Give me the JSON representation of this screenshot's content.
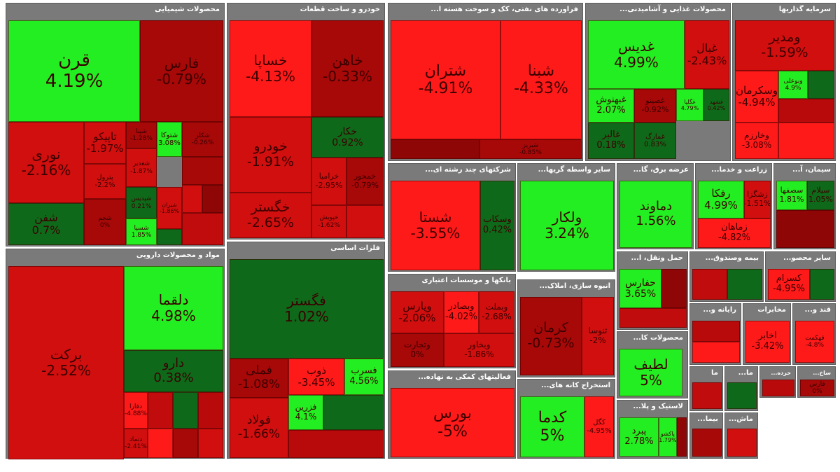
{
  "chart_data": {
    "type": "treemap",
    "title": "",
    "colors": {
      "strong_pos": "#22ee22",
      "mild_pos": "#0e6a1a",
      "strong_neg": "#ff1a1a",
      "mid_neg": "#d10f0f",
      "mild_neg": "#a70808",
      "header": "#7a7a7a"
    },
    "sectors": [
      {
        "id": "chem",
        "name": "محصولات شیمیایی",
        "tiles": [
          {
            "symbol": "قرن",
            "change": 4.19
          },
          {
            "symbol": "فارس",
            "change": -0.79
          },
          {
            "symbol": "نوری",
            "change": -2.16
          },
          {
            "symbol": "تاپیکو",
            "change": -1.97
          },
          {
            "symbol": "شپنا",
            "change": -1.28
          },
          {
            "symbol": "شتوکا",
            "change": 3.08
          },
          {
            "symbol": "شکلر",
            "change": -0.26
          },
          {
            "symbol": "شغدیر",
            "change": -1.87
          },
          {
            "symbol": "پترول",
            "change": -2.2
          },
          {
            "symbol": "شپدیس",
            "change": 0.21
          },
          {
            "symbol": "شیران",
            "change": -1.86
          },
          {
            "symbol": "شفن",
            "change": 0.7
          },
          {
            "symbol": "شجم",
            "change": 0
          },
          {
            "symbol": "شسپا",
            "change": 1.85
          }
        ]
      },
      {
        "id": "auto",
        "name": "خودرو و ساخت قطعات",
        "tiles": [
          {
            "symbol": "خساپا",
            "change": -4.13
          },
          {
            "symbol": "خاهن",
            "change": -0.33
          },
          {
            "symbol": "خکار",
            "change": 0.92
          },
          {
            "symbol": "خودرو",
            "change": -1.91
          },
          {
            "symbol": "خرامیا",
            "change": -2.95
          },
          {
            "symbol": "خمحور",
            "change": -0.79
          },
          {
            "symbol": "خگستر",
            "change": -2.65
          },
          {
            "symbol": "خپویش",
            "change": -1.62
          }
        ]
      },
      {
        "id": "oil",
        "name": "فراورده های نفتی، کک و سوخت هسته ا...",
        "tiles": [
          {
            "symbol": "شتران",
            "change": -4.91
          },
          {
            "symbol": "شبنا",
            "change": -4.33
          },
          {
            "symbol": "شبریز",
            "change": -0.85
          }
        ]
      },
      {
        "id": "food",
        "name": "محصولات غذایی و آشامیدنی...",
        "tiles": [
          {
            "symbol": "غدیس",
            "change": 4.99
          },
          {
            "symbol": "غبال",
            "change": -2.43
          },
          {
            "symbol": "غبهنوش",
            "change": 2.07
          },
          {
            "symbol": "غصینو",
            "change": -0.92
          },
          {
            "symbol": "غالبر",
            "change": 0.18
          },
          {
            "symbol": "غمارگ",
            "change": 0.83
          },
          {
            "symbol": "غگلپا",
            "change": 4.79
          },
          {
            "symbol": "غشهد",
            "change": 0.42
          }
        ]
      },
      {
        "id": "invest",
        "name": "سرمایه گذاریها",
        "tiles": [
          {
            "symbol": "ومدیر",
            "change": -1.59
          },
          {
            "symbol": "وسکرمان",
            "change": -4.94
          },
          {
            "symbol": "وخارزم",
            "change": -3.08
          },
          {
            "symbol": "وبوعلی",
            "change": 4.9
          }
        ]
      },
      {
        "id": "multi",
        "name": "شرکتهای چند رشته ای...",
        "tiles": [
          {
            "symbol": "شستا",
            "change": -3.55
          },
          {
            "symbol": "وسکاب",
            "change": 0.42
          }
        ]
      },
      {
        "id": "broker",
        "name": "سایر واسطه گریها...",
        "tiles": [
          {
            "symbol": "ولکار",
            "change": 3.24
          }
        ]
      },
      {
        "id": "power",
        "name": "عرضه برق، گا...",
        "tiles": [
          {
            "symbol": "دماوند",
            "change": 1.56
          }
        ]
      },
      {
        "id": "agri",
        "name": "زراعت و خدما...",
        "tiles": [
          {
            "symbol": "رفکا",
            "change": 4.99
          },
          {
            "symbol": "زشگزا",
            "change": -1.51
          },
          {
            "symbol": "زماهان",
            "change": -4.82
          }
        ]
      },
      {
        "id": "cement",
        "name": "سیمان، آ...",
        "tiles": [
          {
            "symbol": "سصفها",
            "change": 1.81
          },
          {
            "symbol": "سیلام",
            "change": 1.05
          }
        ]
      },
      {
        "id": "pharma",
        "name": "مواد و محصولات دارویی",
        "tiles": [
          {
            "symbol": "برکت",
            "change": -2.52
          },
          {
            "symbol": "دلقما",
            "change": 4.98
          },
          {
            "symbol": "دارو",
            "change": 0.38
          },
          {
            "symbol": "دفارا",
            "change": -4.88
          },
          {
            "symbol": "دتماد",
            "change": -2.41
          }
        ]
      },
      {
        "id": "metals",
        "name": "فلزات اساسی",
        "tiles": [
          {
            "symbol": "فگستر",
            "change": 1.02
          },
          {
            "symbol": "فملی",
            "change": -1.08
          },
          {
            "symbol": "فولاد",
            "change": -1.66
          },
          {
            "symbol": "ذوب",
            "change": -3.45
          },
          {
            "symbol": "فسرب",
            "change": 4.56
          },
          {
            "symbol": "فزرین",
            "change": 4.1
          }
        ]
      },
      {
        "id": "banks",
        "name": "بانکها و موسسات اعتباری",
        "tiles": [
          {
            "symbol": "وپارس",
            "change": -2.06
          },
          {
            "symbol": "وبصادر",
            "change": -4.02
          },
          {
            "symbol": "وبملت",
            "change": -2.68
          },
          {
            "symbol": "وتجارت",
            "change": 0
          },
          {
            "symbol": "وبخاور",
            "change": -1.86
          }
        ]
      },
      {
        "id": "build",
        "name": "انبوه سازی، املاک...",
        "tiles": [
          {
            "symbol": "کرمان",
            "change": -0.73
          },
          {
            "symbol": "ثنوسا",
            "change": -2
          }
        ]
      },
      {
        "id": "aux",
        "name": "فعالیتهای کمکی به نهاده...",
        "tiles": [
          {
            "symbol": "بورس",
            "change": -5
          }
        ]
      },
      {
        "id": "mining",
        "name": "استخراج کانه های...",
        "tiles": [
          {
            "symbol": "کدما",
            "change": 5
          },
          {
            "symbol": "کگل",
            "change": -4.95
          }
        ]
      },
      {
        "id": "transport",
        "name": "حمل ونقل، ا...",
        "tiles": [
          {
            "symbol": "حفارس",
            "change": 3.65
          }
        ]
      },
      {
        "id": "insurance",
        "name": "بیمه وصندوق...",
        "tiles": []
      },
      {
        "id": "othermine",
        "name": "سایر محصو...",
        "tiles": [
          {
            "symbol": "کسرام",
            "change": -4.95
          }
        ]
      },
      {
        "id": "it",
        "name": "رایانه و...",
        "tiles": []
      },
      {
        "id": "telecom",
        "name": "مخابرات",
        "tiles": [
          {
            "symbol": "اخابر",
            "change": -3.42
          }
        ]
      },
      {
        "id": "sugar",
        "name": "قند و...",
        "tiles": [
          {
            "symbol": "قهکمت",
            "change": -4.8
          }
        ]
      },
      {
        "id": "tile",
        "name": "محصولات کا...",
        "tiles": [
          {
            "symbol": "لطیف",
            "change": 5
          }
        ]
      },
      {
        "id": "rubber",
        "name": "لاستیک و پلا...",
        "tiles": [
          {
            "symbol": "پبرد",
            "change": 2.78
          },
          {
            "symbol": "پاکشو",
            "change": 1.79
          }
        ]
      },
      {
        "id": "s_ma",
        "name": "ما",
        "tiles": []
      },
      {
        "id": "s_ma2",
        "name": "ما...",
        "tiles": []
      },
      {
        "id": "s_kharde",
        "name": "خرده...",
        "tiles": []
      },
      {
        "id": "s_sakht",
        "name": "ساخ...",
        "tiles": [
          {
            "symbol": "فارس",
            "change": 0
          }
        ]
      },
      {
        "id": "s_bima",
        "name": "بیما...",
        "tiles": []
      },
      {
        "id": "s_mach",
        "name": "ماش...",
        "tiles": []
      }
    ]
  }
}
